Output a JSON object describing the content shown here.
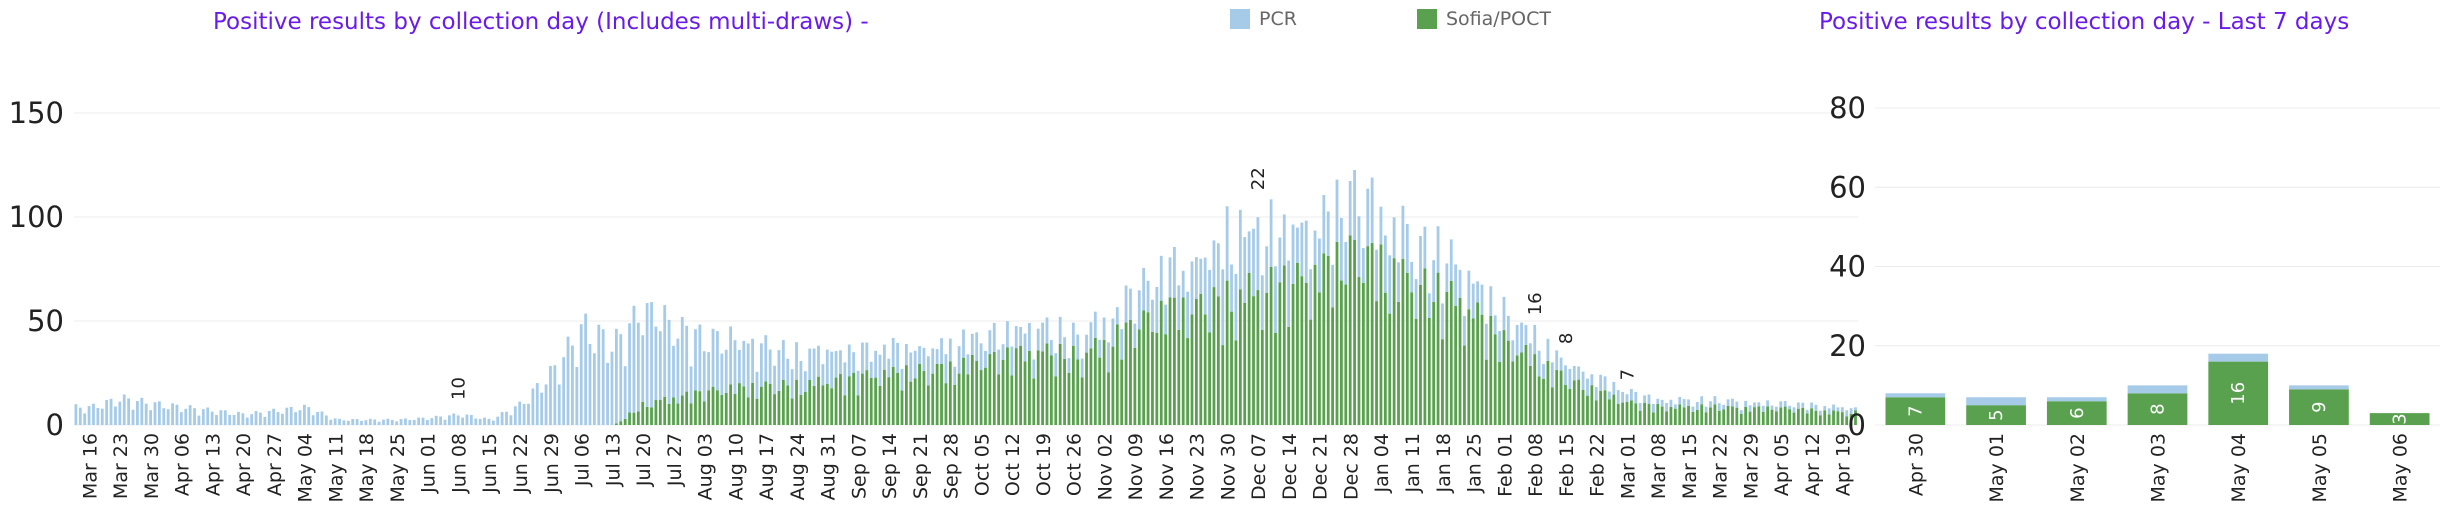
{
  "colors": {
    "pcr": "#a6cbe8",
    "poct": "#59a14f",
    "title": "#6a1bea",
    "grid": "#ececec"
  },
  "legend": {
    "pcr_label": "PCR",
    "poct_label": "Sofia/POCT"
  },
  "chart_data": [
    {
      "type": "bar",
      "stacked": true,
      "title": "Positive results by collection day (Includes multi-draws) -",
      "xlabel": "",
      "ylabel": "",
      "ylim": [
        0,
        160
      ],
      "yticks": [
        0,
        50,
        100,
        150
      ],
      "grid": true,
      "x_tick_labels": [
        "Mar 16",
        "Mar 23",
        "Mar 30",
        "Apr 06",
        "Apr 13",
        "Apr 20",
        "Apr 27",
        "May 04",
        "May 11",
        "May 18",
        "May 25",
        "Jun 01",
        "Jun 08",
        "Jun 15",
        "Jun 22",
        "Jun 29",
        "Jul 06",
        "Jul 13",
        "Jul 20",
        "Jul 27",
        "Aug 03",
        "Aug 10",
        "Aug 17",
        "Aug 24",
        "Aug 31",
        "Sep 07",
        "Sep 14",
        "Sep 21",
        "Sep 28",
        "Oct 05",
        "Oct 12",
        "Oct 19",
        "Oct 26",
        "Nov 02",
        "Nov 09",
        "Nov 16",
        "Nov 23",
        "Nov 30",
        "Dec 07",
        "Dec 14",
        "Dec 21",
        "Dec 28",
        "Jan 04",
        "Jan 11",
        "Jan 18",
        "Jan 25",
        "Feb 01",
        "Feb 08",
        "Feb 15",
        "Feb 22",
        "Mar 01",
        "Mar 08",
        "Mar 15",
        "Mar 22",
        "Mar 29",
        "Apr 05",
        "Apr 12",
        "Apr 19"
      ],
      "weekly_series": [
        {
          "name": "PCR",
          "values": [
            10,
            15,
            12,
            10,
            8,
            6,
            8,
            10,
            3,
            3,
            3,
            4,
            6,
            3,
            12,
            30,
            55,
            45,
            55,
            40,
            30,
            28,
            22,
            18,
            18,
            15,
            15,
            14,
            14,
            14,
            14,
            14,
            12,
            14,
            20,
            24,
            26,
            40,
            35,
            32,
            28,
            34,
            30,
            24,
            22,
            18,
            16,
            14,
            10,
            8,
            6,
            4,
            4,
            4,
            3,
            3,
            3,
            3
          ]
        },
        {
          "name": "Sofia/POCT",
          "values": [
            0,
            0,
            0,
            0,
            0,
            0,
            0,
            0,
            0,
            0,
            0,
            0,
            0,
            0,
            0,
            0,
            0,
            0,
            12,
            15,
            18,
            20,
            22,
            22,
            24,
            26,
            28,
            30,
            32,
            35,
            38,
            40,
            38,
            45,
            55,
            62,
            65,
            70,
            75,
            78,
            82,
            95,
            88,
            78,
            72,
            60,
            45,
            35,
            25,
            18,
            12,
            10,
            10,
            10,
            9,
            9,
            8,
            7
          ]
        }
      ],
      "annotations": [
        {
          "x": "Jun 08",
          "label": "10"
        },
        {
          "x": "Dec 07",
          "label": "22"
        },
        {
          "x": "Feb 08",
          "label": "16"
        },
        {
          "x": "Feb 15",
          "label": "8"
        },
        {
          "x": "Mar 01",
          "label": "7"
        }
      ]
    },
    {
      "type": "bar",
      "stacked": true,
      "title": "Positive results by collection day - Last 7 days",
      "xlabel": "",
      "ylabel": "",
      "ylim": [
        0,
        90
      ],
      "yticks": [
        0,
        20,
        40,
        60,
        80
      ],
      "grid": true,
      "categories": [
        "Apr 30",
        "May 01",
        "May 02",
        "May 03",
        "May 04",
        "May 05",
        "May 06"
      ],
      "series": [
        {
          "name": "Sofia/POCT",
          "values": [
            7,
            5,
            6,
            8,
            16,
            9,
            3
          ],
          "labels": [
            "7",
            "5",
            "6",
            "8",
            "16",
            "9",
            "3"
          ]
        },
        {
          "name": "PCR",
          "values": [
            1,
            2,
            1,
            2,
            2,
            1,
            0
          ]
        }
      ]
    }
  ]
}
